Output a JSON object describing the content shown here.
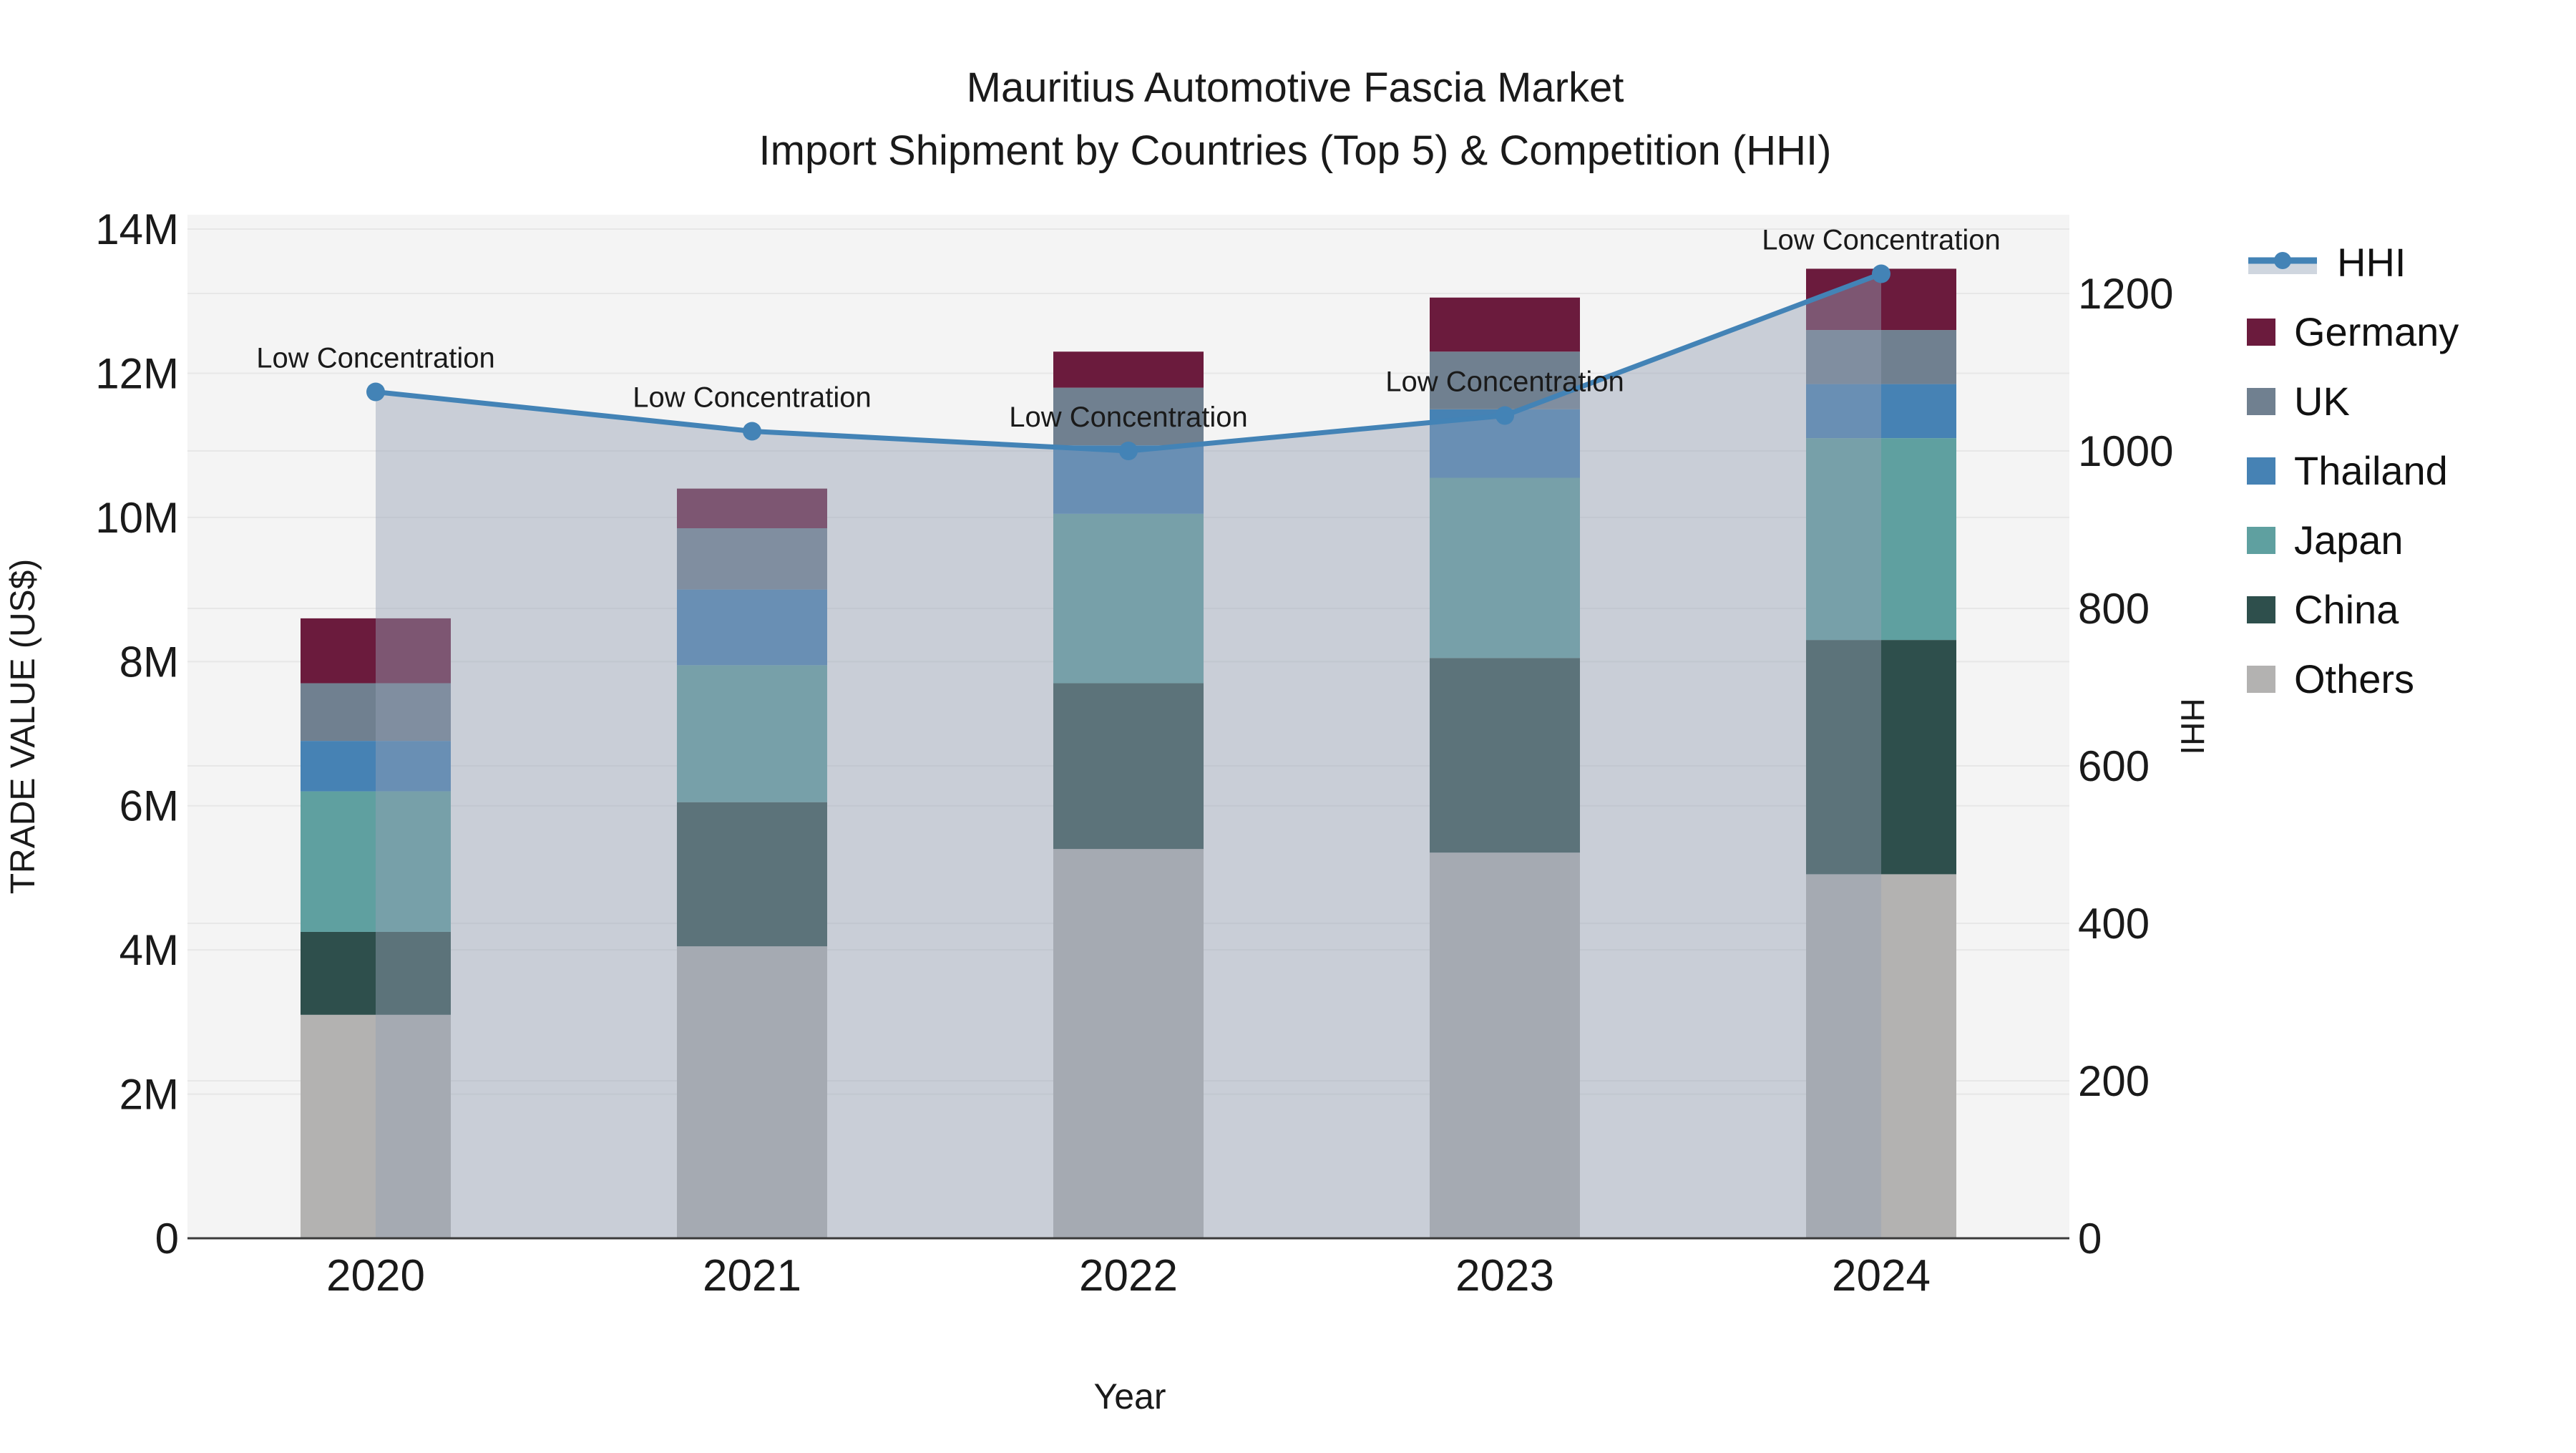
{
  "title": {
    "line1": "Mauritius Automotive Fascia Market",
    "line2": "Import Shipment by Countries (Top 5) & Competition (HHI)"
  },
  "axes": {
    "x_title": "Year",
    "y_left_title": "TRADE VALUE (US$)",
    "y_right_title": "HHI",
    "y_left_ticks": [
      "0",
      "2M",
      "4M",
      "6M",
      "8M",
      "10M",
      "12M",
      "14M"
    ],
    "y_right_ticks": [
      "0",
      "200",
      "400",
      "600",
      "800",
      "1000",
      "1200"
    ],
    "x_ticks": [
      "2020",
      "2021",
      "2022",
      "2023",
      "2024"
    ]
  },
  "chart_data": {
    "type": "bar+line",
    "title": "Mauritius Automotive Fascia Market — Import Shipment by Countries (Top 5) & Competition (HHI)",
    "categories": [
      "2020",
      "2021",
      "2022",
      "2023",
      "2024"
    ],
    "stacked_bar_unit": "M US$ (trade value, left axis)",
    "series": [
      {
        "name": "Others",
        "color": "#b3b2b1",
        "values": [
          3.1,
          4.05,
          5.4,
          5.35,
          5.05
        ]
      },
      {
        "name": "China",
        "color": "#2e4f4c",
        "values": [
          1.15,
          2.0,
          2.3,
          2.7,
          3.25
        ]
      },
      {
        "name": "Japan",
        "color": "#5fa0a0",
        "values": [
          1.95,
          1.9,
          2.35,
          2.5,
          2.8
        ]
      },
      {
        "name": "Thailand",
        "color": "#4682b4",
        "values": [
          0.7,
          1.05,
          0.95,
          0.95,
          0.75
        ]
      },
      {
        "name": "UK",
        "color": "#708090",
        "values": [
          0.8,
          0.85,
          0.8,
          0.8,
          0.75
        ]
      },
      {
        "name": "Germany",
        "color": "#6b1b3d",
        "values": [
          0.9,
          0.55,
          0.5,
          0.75,
          0.85
        ]
      }
    ],
    "bar_totals": [
      8.6,
      10.4,
      12.3,
      13.05,
      13.45
    ],
    "line_series": {
      "name": "HHI",
      "axis": "right",
      "color": "#4383b6",
      "area_fill": "rgba(148,160,180,0.45)",
      "values": [
        1075,
        1025,
        1000,
        1045,
        1225
      ]
    },
    "annotations": [
      {
        "text": "Low Concentration",
        "category": "2020"
      },
      {
        "text": "Low Concentration",
        "category": "2021"
      },
      {
        "text": "Low Concentration",
        "category": "2022"
      },
      {
        "text": "Low Concentration",
        "category": "2023"
      },
      {
        "text": "Low Concentration",
        "category": "2024"
      }
    ],
    "xlabel": "Year",
    "ylabel_left": "TRADE VALUE (US$)",
    "ylabel_right": "HHI",
    "ylim_left": [
      0,
      14200000
    ],
    "ylim_right": [
      0,
      1300
    ],
    "grid": true,
    "legend_position": "right",
    "plot_bg": "#f4f4f4",
    "grid_color": "#e7e7e7"
  },
  "legend": {
    "items": [
      {
        "id": "hhi",
        "label": "HHI",
        "type": "line",
        "color": "#4383b6",
        "band": "#cfd6df"
      },
      {
        "id": "germany",
        "label": "Germany",
        "type": "square",
        "color": "#6b1b3d"
      },
      {
        "id": "uk",
        "label": "UK",
        "type": "square",
        "color": "#708090"
      },
      {
        "id": "thailand",
        "label": "Thailand",
        "type": "square",
        "color": "#4682b4"
      },
      {
        "id": "japan",
        "label": "Japan",
        "type": "square",
        "color": "#5fa0a0"
      },
      {
        "id": "china",
        "label": "China",
        "type": "square",
        "color": "#2e4f4c"
      },
      {
        "id": "others",
        "label": "Others",
        "type": "square",
        "color": "#b3b2b1"
      }
    ]
  }
}
